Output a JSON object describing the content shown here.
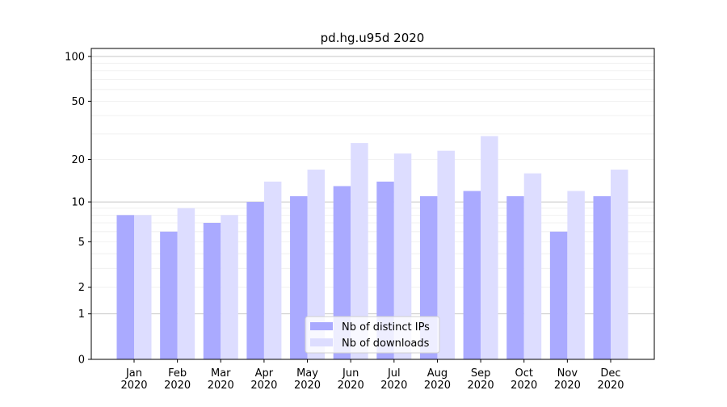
{
  "chart_data": {
    "type": "bar",
    "title": "pd.hg.u95d 2020",
    "xlabel": "",
    "ylabel": "",
    "yscale": "log(1+y)",
    "ylim": [
      0,
      113
    ],
    "yticks": [
      0,
      1,
      2,
      5,
      10,
      20,
      50,
      100
    ],
    "grid": true,
    "legend_position": "bottom-center",
    "categories": [
      "Jan\n2020",
      "Feb\n2020",
      "Mar\n2020",
      "Apr\n2020",
      "May\n2020",
      "Jun\n2020",
      "Jul\n2020",
      "Aug\n2020",
      "Sep\n2020",
      "Oct\n2020",
      "Nov\n2020",
      "Dec\n2020"
    ],
    "series": [
      {
        "name": "Nb of distinct IPs",
        "color": "#aaaaff",
        "values": [
          8,
          6,
          7,
          10,
          11,
          13,
          14,
          11,
          12,
          11,
          6,
          11
        ]
      },
      {
        "name": "Nb of downloads",
        "color": "#ddddff",
        "values": [
          8,
          9,
          8,
          14,
          17,
          26,
          22,
          23,
          29,
          16,
          12,
          17
        ]
      }
    ]
  }
}
